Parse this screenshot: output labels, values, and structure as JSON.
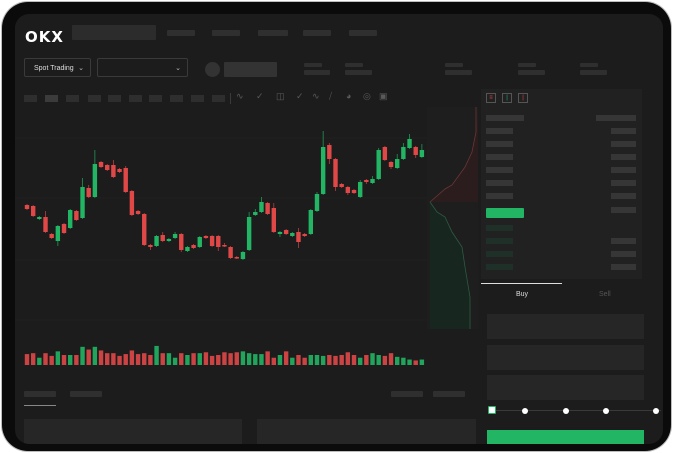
{
  "header": {
    "logo": "OKX",
    "market_selector": "Spot Trading"
  },
  "chart_toolbar": {
    "icons": [
      "indicator-icon",
      "candle-type-icon",
      "compare-icon",
      "line-icon",
      "draw-icon",
      "gauge-icon",
      "target-icon",
      "fullscreen-icon"
    ]
  },
  "order_book": {
    "view_icons": [
      "both-sides-icon",
      "bids-only-icon",
      "asks-only-icon"
    ]
  },
  "trade_form": {
    "buy_tab": "Buy",
    "sell_tab": "Sell",
    "active_tab": "Buy",
    "slider_level": 0,
    "slider_stops": 5
  },
  "colors": {
    "up": "#22b564",
    "down": "#e04848",
    "background": "#1c1c1c"
  },
  "chart_data": {
    "type": "candlestick",
    "fields": [
      "open",
      "close",
      "high",
      "low"
    ],
    "candles": [
      [
        57,
        53,
        58,
        52
      ],
      [
        56,
        46,
        57,
        45
      ],
      [
        43,
        45,
        46,
        42
      ],
      [
        45,
        30,
        51,
        29
      ],
      [
        28,
        24,
        29,
        23
      ],
      [
        21,
        36,
        37,
        16
      ],
      [
        38,
        29,
        39,
        28
      ],
      [
        34,
        52,
        53,
        33
      ],
      [
        51,
        42,
        52,
        41
      ],
      [
        44,
        75,
        84,
        43
      ],
      [
        74,
        65,
        77,
        64
      ],
      [
        65,
        98,
        112,
        64
      ],
      [
        100,
        95,
        101,
        94
      ],
      [
        97,
        92,
        98,
        91
      ],
      [
        97,
        85,
        102,
        84
      ],
      [
        93,
        90,
        94,
        89
      ],
      [
        94,
        70,
        96,
        69
      ],
      [
        71,
        47,
        72,
        46
      ],
      [
        51,
        48,
        52,
        47
      ],
      [
        48,
        17,
        49,
        16
      ],
      [
        17,
        15,
        18,
        12
      ],
      [
        16,
        26,
        27,
        15
      ],
      [
        27,
        21,
        30,
        20
      ],
      [
        21,
        23,
        24,
        20
      ],
      [
        24,
        28,
        30,
        23
      ],
      [
        28,
        12,
        29,
        10
      ],
      [
        11,
        15,
        16,
        10
      ],
      [
        17,
        14,
        18,
        13
      ],
      [
        15,
        25,
        26,
        14
      ],
      [
        26,
        24,
        27,
        23
      ],
      [
        26,
        16,
        27,
        15
      ],
      [
        26,
        15,
        27,
        11
      ],
      [
        17,
        16,
        19,
        15
      ],
      [
        15,
        4,
        16,
        3
      ],
      [
        5,
        4,
        6,
        3
      ],
      [
        3,
        10,
        11,
        2
      ],
      [
        12,
        45,
        50,
        11
      ],
      [
        47,
        50,
        53,
        46
      ],
      [
        50,
        60,
        65,
        49
      ],
      [
        59,
        48,
        60,
        47
      ],
      [
        54,
        30,
        59,
        29
      ],
      [
        28,
        30,
        31,
        25
      ],
      [
        32,
        28,
        33,
        27
      ],
      [
        26,
        29,
        30,
        25
      ],
      [
        30,
        20,
        34,
        14
      ],
      [
        28,
        26,
        29,
        25
      ],
      [
        28,
        52,
        53,
        27
      ],
      [
        51,
        68,
        70,
        50
      ],
      [
        68,
        115,
        131,
        67
      ],
      [
        117,
        103,
        119,
        98
      ],
      [
        103,
        75,
        104,
        71
      ],
      [
        78,
        75,
        79,
        74
      ],
      [
        75,
        69,
        76,
        67
      ],
      [
        72,
        69,
        73,
        68
      ],
      [
        65,
        80,
        82,
        64
      ],
      [
        82,
        80,
        83,
        78
      ],
      [
        79,
        83,
        86,
        78
      ],
      [
        83,
        112,
        114,
        82
      ],
      [
        115,
        102,
        116,
        101
      ],
      [
        100,
        95,
        101,
        93
      ],
      [
        94,
        103,
        108,
        93
      ],
      [
        103,
        115,
        119,
        102
      ],
      [
        114,
        123,
        128,
        113
      ],
      [
        115,
        107,
        116,
        104
      ],
      [
        105,
        112,
        118,
        104
      ]
    ],
    "volume": [
      12,
      13,
      8,
      13,
      10,
      15,
      11,
      11,
      11,
      20,
      17,
      20,
      16,
      13,
      13,
      10,
      12,
      16,
      12,
      13,
      11,
      21,
      13,
      13,
      8,
      13,
      11,
      13,
      13,
      14,
      10,
      11,
      14,
      13,
      14,
      15,
      13,
      12,
      12,
      15,
      8,
      11,
      15,
      8,
      11,
      8,
      11,
      11,
      10,
      11,
      10,
      11,
      14,
      11,
      8,
      11,
      13,
      11,
      10,
      13,
      9,
      8,
      6,
      5,
      6
    ]
  }
}
